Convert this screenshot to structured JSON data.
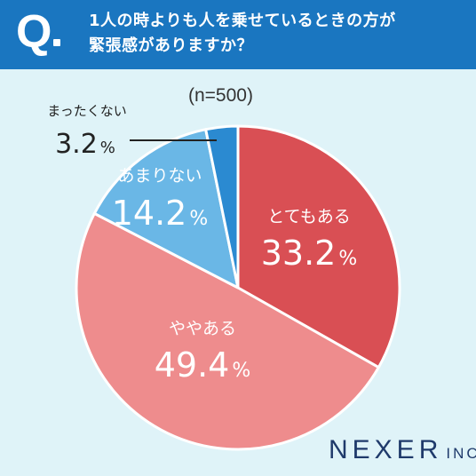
{
  "header": {
    "q": "Q",
    "question_line1": "1人の時よりも人を乗せているときの方が",
    "question_line2": "緊張感がありますか？"
  },
  "sample": "(n=500)",
  "brand": {
    "name": "NEXER",
    "suffix": "INC."
  },
  "colors": {
    "header": "#1a76c0",
    "background": "#dff3f8",
    "slices": [
      "#d94f54",
      "#ee8c8d",
      "#6ab7e6",
      "#2b8ad1"
    ]
  },
  "chart_data": {
    "type": "pie",
    "start": "12 o'clock, clockwise",
    "slices": [
      {
        "label": "とてもある",
        "value": 33.2,
        "display": "33.2",
        "unit": "%"
      },
      {
        "label": "ややある",
        "value": 49.4,
        "display": "49.4",
        "unit": "%"
      },
      {
        "label": "あまりない",
        "value": 14.2,
        "display": "14.2",
        "unit": "%"
      },
      {
        "label": "まったくない",
        "value": 3.2,
        "display": "3.2",
        "unit": "%"
      }
    ]
  }
}
